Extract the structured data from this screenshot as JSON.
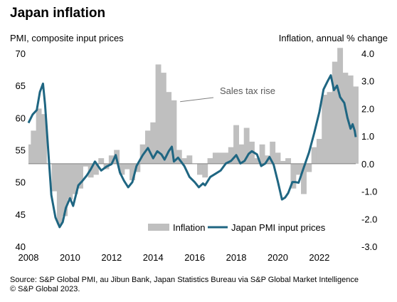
{
  "chart_data": {
    "type": "line",
    "title": "Japan inflation",
    "left_axis_label": "PMI, composite input prices",
    "right_axis_label": "Inflation, annual % change",
    "left_axis": {
      "min": 40,
      "max": 70,
      "ticks": [
        "40",
        "45",
        "50",
        "55",
        "60",
        "65",
        "70"
      ]
    },
    "right_axis": {
      "min": -3.0,
      "max": 4.0,
      "ticks": [
        "-3.0",
        "-2.0",
        "-1.0",
        "0.0",
        "1.0",
        "2.0",
        "3.0",
        "4.0"
      ]
    },
    "x_axis": {
      "min": 2008.0,
      "max": 2023.75,
      "ticks": [
        "2008",
        "2010",
        "2012",
        "2014",
        "2016",
        "2018",
        "2020",
        "2022"
      ]
    },
    "grid": false,
    "legend": {
      "placement": "bottom-right",
      "items": [
        "Inflation",
        "Japan PMI input prices"
      ]
    },
    "annotation": {
      "text": "Sales tax rise",
      "x": 2015.3,
      "y": 62.5
    },
    "series": [
      {
        "name": "Inflation",
        "kind": "bar",
        "axis": "right",
        "color": "#bfbfbf",
        "points": [
          [
            2008.0,
            0.7
          ],
          [
            2008.25,
            1.2
          ],
          [
            2008.5,
            2.0
          ],
          [
            2008.75,
            1.8
          ],
          [
            2009.0,
            0.0
          ],
          [
            2009.25,
            -1.0
          ],
          [
            2009.5,
            -2.2
          ],
          [
            2009.75,
            -1.9
          ],
          [
            2010.0,
            -1.3
          ],
          [
            2010.25,
            -1.1
          ],
          [
            2010.5,
            -0.9
          ],
          [
            2010.75,
            -0.1
          ],
          [
            2011.0,
            -0.5
          ],
          [
            2011.25,
            -0.4
          ],
          [
            2011.5,
            0.2
          ],
          [
            2011.75,
            -0.2
          ],
          [
            2012.0,
            0.3
          ],
          [
            2012.25,
            0.5
          ],
          [
            2012.5,
            -0.4
          ],
          [
            2012.75,
            -0.2
          ],
          [
            2013.0,
            -0.6
          ],
          [
            2013.25,
            -0.3
          ],
          [
            2013.5,
            0.7
          ],
          [
            2013.75,
            1.2
          ],
          [
            2014.0,
            1.5
          ],
          [
            2014.25,
            3.6
          ],
          [
            2014.5,
            3.3
          ],
          [
            2014.75,
            2.6
          ],
          [
            2015.0,
            2.3
          ],
          [
            2015.25,
            0.5
          ],
          [
            2015.5,
            0.2
          ],
          [
            2015.75,
            0.3
          ],
          [
            2016.0,
            0.0
          ],
          [
            2016.25,
            -0.4
          ],
          [
            2016.5,
            -0.5
          ],
          [
            2016.75,
            0.2
          ],
          [
            2017.0,
            0.4
          ],
          [
            2017.25,
            0.4
          ],
          [
            2017.5,
            0.4
          ],
          [
            2017.75,
            0.6
          ],
          [
            2018.0,
            1.4
          ],
          [
            2018.25,
            0.7
          ],
          [
            2018.5,
            1.3
          ],
          [
            2018.75,
            0.8
          ],
          [
            2019.0,
            0.2
          ],
          [
            2019.25,
            0.7
          ],
          [
            2019.5,
            0.3
          ],
          [
            2019.75,
            0.8
          ],
          [
            2020.0,
            0.4
          ],
          [
            2020.25,
            0.1
          ],
          [
            2020.5,
            0.2
          ],
          [
            2020.75,
            -0.9
          ],
          [
            2021.0,
            -0.4
          ],
          [
            2021.25,
            -1.1
          ],
          [
            2021.5,
            -0.3
          ],
          [
            2021.75,
            0.6
          ],
          [
            2022.0,
            0.9
          ],
          [
            2022.25,
            2.5
          ],
          [
            2022.5,
            2.6
          ],
          [
            2022.75,
            3.7
          ],
          [
            2023.0,
            4.2
          ],
          [
            2023.25,
            3.3
          ],
          [
            2023.5,
            3.2
          ],
          [
            2023.75,
            2.8
          ]
        ]
      },
      {
        "name": "Japan PMI input prices",
        "kind": "line",
        "axis": "left",
        "color": "#1f6682",
        "points": [
          [
            2008.0,
            59.2
          ],
          [
            2008.2,
            60.5
          ],
          [
            2008.4,
            61.2
          ],
          [
            2008.55,
            64.0
          ],
          [
            2008.7,
            65.3
          ],
          [
            2008.8,
            62.0
          ],
          [
            2008.95,
            55.0
          ],
          [
            2009.1,
            48.0
          ],
          [
            2009.3,
            44.5
          ],
          [
            2009.5,
            43.0
          ],
          [
            2009.65,
            43.8
          ],
          [
            2009.8,
            46.0
          ],
          [
            2010.0,
            47.5
          ],
          [
            2010.15,
            46.3
          ],
          [
            2010.4,
            49.5
          ],
          [
            2010.6,
            50.2
          ],
          [
            2010.8,
            51.0
          ],
          [
            2011.0,
            52.0
          ],
          [
            2011.2,
            53.2
          ],
          [
            2011.5,
            51.8
          ],
          [
            2011.75,
            52.4
          ],
          [
            2012.0,
            52.8
          ],
          [
            2012.2,
            54.2
          ],
          [
            2012.4,
            51.5
          ],
          [
            2012.6,
            50.2
          ],
          [
            2012.8,
            49.2
          ],
          [
            2013.0,
            50.0
          ],
          [
            2013.2,
            52.5
          ],
          [
            2013.5,
            54.2
          ],
          [
            2013.75,
            55.3
          ],
          [
            2014.0,
            53.7
          ],
          [
            2014.2,
            54.8
          ],
          [
            2014.4,
            54.3
          ],
          [
            2014.55,
            53.5
          ],
          [
            2014.75,
            54.8
          ],
          [
            2014.9,
            55.5
          ],
          [
            2015.0,
            53.2
          ],
          [
            2015.2,
            53.8
          ],
          [
            2015.5,
            52.5
          ],
          [
            2015.75,
            50.8
          ],
          [
            2016.0,
            50.0
          ],
          [
            2016.2,
            49.2
          ],
          [
            2016.4,
            49.8
          ],
          [
            2016.5,
            49.5
          ],
          [
            2016.75,
            50.8
          ],
          [
            2017.0,
            51.3
          ],
          [
            2017.25,
            51.8
          ],
          [
            2017.5,
            52.9
          ],
          [
            2017.75,
            53.3
          ],
          [
            2018.0,
            54.2
          ],
          [
            2018.2,
            52.9
          ],
          [
            2018.4,
            53.3
          ],
          [
            2018.6,
            54.4
          ],
          [
            2018.75,
            54.8
          ],
          [
            2019.0,
            54.3
          ],
          [
            2019.2,
            52.5
          ],
          [
            2019.4,
            52.9
          ],
          [
            2019.6,
            53.9
          ],
          [
            2019.8,
            52.7
          ],
          [
            2020.0,
            50.1
          ],
          [
            2020.2,
            47.3
          ],
          [
            2020.35,
            47.6
          ],
          [
            2020.5,
            48.3
          ],
          [
            2020.7,
            50.0
          ],
          [
            2020.85,
            50.0
          ],
          [
            2021.0,
            49.9
          ],
          [
            2021.2,
            51.8
          ],
          [
            2021.5,
            54.6
          ],
          [
            2021.75,
            57.6
          ],
          [
            2022.0,
            60.9
          ],
          [
            2022.2,
            64.4
          ],
          [
            2022.4,
            65.7
          ],
          [
            2022.55,
            66.6
          ],
          [
            2022.7,
            64.3
          ],
          [
            2022.85,
            65.0
          ],
          [
            2023.0,
            63.2
          ],
          [
            2023.2,
            62.3
          ],
          [
            2023.35,
            60.0
          ],
          [
            2023.5,
            58.3
          ],
          [
            2023.6,
            59.0
          ],
          [
            2023.7,
            58.0
          ],
          [
            2023.75,
            57.0
          ]
        ]
      }
    ]
  },
  "source": {
    "line1": "Source: S&P Global PMI, au Jibun Bank, Japan Statistics Bureau via S&P Global Market Intelligence",
    "line2": "© S&P Global 2023."
  }
}
